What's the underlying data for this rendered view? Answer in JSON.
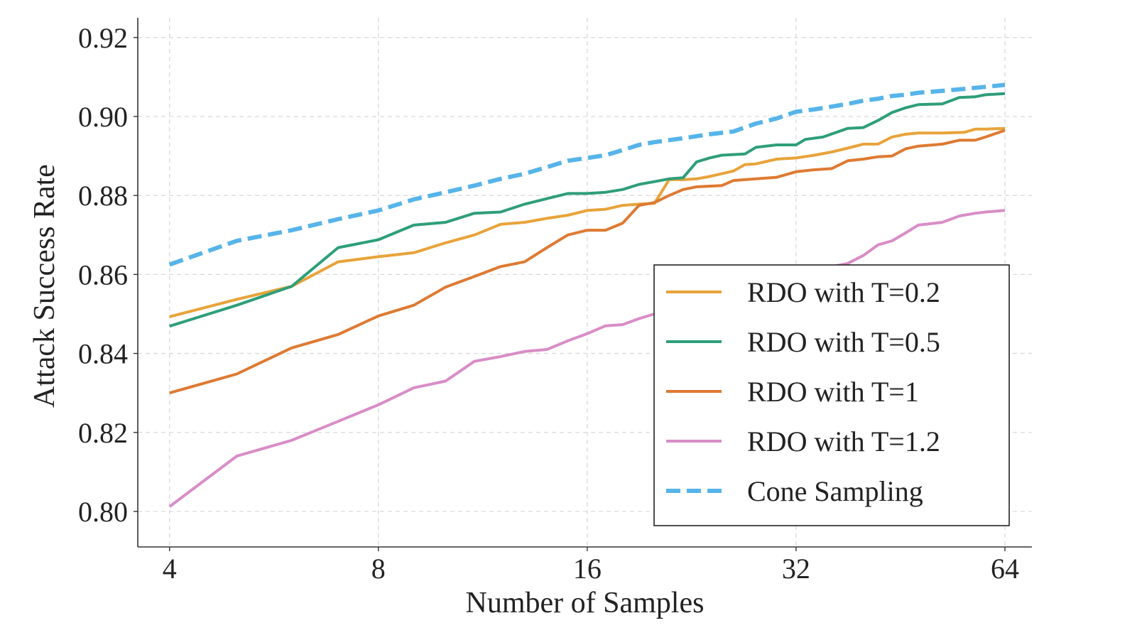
{
  "chart_data": {
    "type": "line",
    "xlabel": "Number of Samples",
    "ylabel": "Attack Success Rate",
    "x_scale": "log2",
    "xlim": [
      3.6,
      70
    ],
    "ylim": [
      0.791,
      0.925
    ],
    "x_ticks": [
      4,
      8,
      16,
      32,
      64
    ],
    "x_tick_labels": [
      "4",
      "8",
      "16",
      "32",
      "64"
    ],
    "y_ticks": [
      0.8,
      0.82,
      0.84,
      0.86,
      0.88,
      0.9,
      0.92
    ],
    "y_tick_labels": [
      "0.80",
      "0.82",
      "0.84",
      "0.86",
      "0.88",
      "0.90",
      "0.92"
    ],
    "grid": true,
    "legend_position": "lower-right",
    "series": [
      {
        "name": "RDO with T=0.2",
        "color": "#E8A33A",
        "dash": "solid",
        "points": [
          [
            4,
            0.8493
          ],
          [
            5,
            0.8537
          ],
          [
            6,
            0.857
          ],
          [
            7,
            0.8632
          ],
          [
            8,
            0.8645
          ],
          [
            9,
            0.8655
          ],
          [
            10,
            0.868
          ],
          [
            11,
            0.87
          ],
          [
            12,
            0.8727
          ],
          [
            13,
            0.8732
          ],
          [
            14,
            0.8742
          ],
          [
            15,
            0.875
          ],
          [
            16,
            0.8762
          ],
          [
            17,
            0.8765
          ],
          [
            18,
            0.8775
          ],
          [
            19,
            0.8778
          ],
          [
            20,
            0.878
          ],
          [
            21,
            0.884
          ],
          [
            22,
            0.884
          ],
          [
            23,
            0.8842
          ],
          [
            24,
            0.8848
          ],
          [
            25,
            0.8855
          ],
          [
            26,
            0.8862
          ],
          [
            27,
            0.8878
          ],
          [
            28,
            0.888
          ],
          [
            30,
            0.8892
          ],
          [
            32,
            0.8895
          ],
          [
            34,
            0.8902
          ],
          [
            36,
            0.891
          ],
          [
            38,
            0.892
          ],
          [
            40,
            0.893
          ],
          [
            42,
            0.893
          ],
          [
            44,
            0.8948
          ],
          [
            46,
            0.8955
          ],
          [
            48,
            0.8958
          ],
          [
            52,
            0.8958
          ],
          [
            56,
            0.896
          ],
          [
            58,
            0.8968
          ],
          [
            60,
            0.8968
          ],
          [
            64,
            0.897
          ]
        ]
      },
      {
        "name": "RDO with T=0.5",
        "color": "#2E9E7A",
        "dash": "solid",
        "points": [
          [
            4,
            0.8469
          ],
          [
            5,
            0.8522
          ],
          [
            6,
            0.857
          ],
          [
            7,
            0.8668
          ],
          [
            8,
            0.8688
          ],
          [
            9,
            0.8725
          ],
          [
            10,
            0.8732
          ],
          [
            11,
            0.8755
          ],
          [
            12,
            0.8758
          ],
          [
            13,
            0.8778
          ],
          [
            14,
            0.8792
          ],
          [
            15,
            0.8805
          ],
          [
            16,
            0.8805
          ],
          [
            17,
            0.8808
          ],
          [
            18,
            0.8815
          ],
          [
            19,
            0.8828
          ],
          [
            20,
            0.8835
          ],
          [
            21,
            0.8842
          ],
          [
            22,
            0.8845
          ],
          [
            23,
            0.8885
          ],
          [
            24,
            0.8895
          ],
          [
            25,
            0.8902
          ],
          [
            27,
            0.8905
          ],
          [
            28,
            0.8922
          ],
          [
            30,
            0.8928
          ],
          [
            32,
            0.8928
          ],
          [
            33,
            0.8942
          ],
          [
            35,
            0.8948
          ],
          [
            38,
            0.897
          ],
          [
            40,
            0.8972
          ],
          [
            42,
            0.899
          ],
          [
            44,
            0.901
          ],
          [
            46,
            0.9022
          ],
          [
            48,
            0.903
          ],
          [
            52,
            0.9032
          ],
          [
            55,
            0.9048
          ],
          [
            58,
            0.905
          ],
          [
            60,
            0.9055
          ],
          [
            64,
            0.9058
          ]
        ]
      },
      {
        "name": "RDO with T=1",
        "color": "#DE7A32",
        "dash": "solid",
        "points": [
          [
            4,
            0.83
          ],
          [
            5,
            0.8348
          ],
          [
            6,
            0.8414
          ],
          [
            7,
            0.8448
          ],
          [
            8,
            0.8495
          ],
          [
            9,
            0.8522
          ],
          [
            10,
            0.8568
          ],
          [
            11,
            0.8595
          ],
          [
            12,
            0.862
          ],
          [
            13,
            0.8632
          ],
          [
            14,
            0.8668
          ],
          [
            15,
            0.87
          ],
          [
            16,
            0.8712
          ],
          [
            17,
            0.8712
          ],
          [
            18,
            0.873
          ],
          [
            19,
            0.8775
          ],
          [
            20,
            0.8782
          ],
          [
            21,
            0.88
          ],
          [
            22,
            0.8815
          ],
          [
            23,
            0.8822
          ],
          [
            25,
            0.8825
          ],
          [
            26,
            0.8838
          ],
          [
            28,
            0.8842
          ],
          [
            30,
            0.8846
          ],
          [
            32,
            0.886
          ],
          [
            34,
            0.8865
          ],
          [
            36,
            0.8868
          ],
          [
            38,
            0.8888
          ],
          [
            40,
            0.8892
          ],
          [
            42,
            0.8898
          ],
          [
            44,
            0.89
          ],
          [
            46,
            0.8918
          ],
          [
            48,
            0.8925
          ],
          [
            52,
            0.893
          ],
          [
            55,
            0.894
          ],
          [
            58,
            0.894
          ],
          [
            60,
            0.8948
          ],
          [
            64,
            0.8965
          ]
        ]
      },
      {
        "name": "RDO with T=1.2",
        "color": "#D88DC6",
        "dash": "solid",
        "points": [
          [
            4,
            0.8012
          ],
          [
            5,
            0.814
          ],
          [
            6,
            0.818
          ],
          [
            7,
            0.8228
          ],
          [
            8,
            0.827
          ],
          [
            9,
            0.8313
          ],
          [
            10,
            0.833
          ],
          [
            11,
            0.838
          ],
          [
            12,
            0.8392
          ],
          [
            13,
            0.8405
          ],
          [
            14,
            0.841
          ],
          [
            15,
            0.8432
          ],
          [
            16,
            0.845
          ],
          [
            17,
            0.847
          ],
          [
            18,
            0.8473
          ],
          [
            19,
            0.8488
          ],
          [
            20,
            0.85
          ],
          [
            22,
            0.8515
          ],
          [
            24,
            0.8528
          ],
          [
            26,
            0.8542
          ],
          [
            28,
            0.8565
          ],
          [
            30,
            0.8585
          ],
          [
            32,
            0.86
          ],
          [
            34,
            0.8608
          ],
          [
            36,
            0.862
          ],
          [
            38,
            0.8628
          ],
          [
            40,
            0.8648
          ],
          [
            42,
            0.8675
          ],
          [
            44,
            0.8685
          ],
          [
            46,
            0.8705
          ],
          [
            48,
            0.8725
          ],
          [
            52,
            0.8732
          ],
          [
            55,
            0.8748
          ],
          [
            58,
            0.8755
          ],
          [
            60,
            0.8758
          ],
          [
            64,
            0.8762
          ]
        ]
      },
      {
        "name": "Cone Sampling",
        "color": "#56B4E9",
        "dash": "dashed",
        "points": [
          [
            4,
            0.8625
          ],
          [
            5,
            0.8685
          ],
          [
            6,
            0.8712
          ],
          [
            7,
            0.874
          ],
          [
            8,
            0.8762
          ],
          [
            9,
            0.879
          ],
          [
            10,
            0.8808
          ],
          [
            11,
            0.8825
          ],
          [
            12,
            0.8842
          ],
          [
            13,
            0.8855
          ],
          [
            14,
            0.8872
          ],
          [
            15,
            0.8888
          ],
          [
            16,
            0.8895
          ],
          [
            17,
            0.8902
          ],
          [
            18,
            0.8915
          ],
          [
            19,
            0.8928
          ],
          [
            20,
            0.8935
          ],
          [
            22,
            0.8945
          ],
          [
            24,
            0.8955
          ],
          [
            26,
            0.8962
          ],
          [
            28,
            0.8982
          ],
          [
            30,
            0.8995
          ],
          [
            32,
            0.9012
          ],
          [
            34,
            0.9018
          ],
          [
            36,
            0.9025
          ],
          [
            38,
            0.9032
          ],
          [
            40,
            0.904
          ],
          [
            42,
            0.9045
          ],
          [
            44,
            0.9052
          ],
          [
            46,
            0.9055
          ],
          [
            48,
            0.906
          ],
          [
            52,
            0.9065
          ],
          [
            56,
            0.907
          ],
          [
            60,
            0.9075
          ],
          [
            64,
            0.908
          ]
        ]
      }
    ]
  }
}
